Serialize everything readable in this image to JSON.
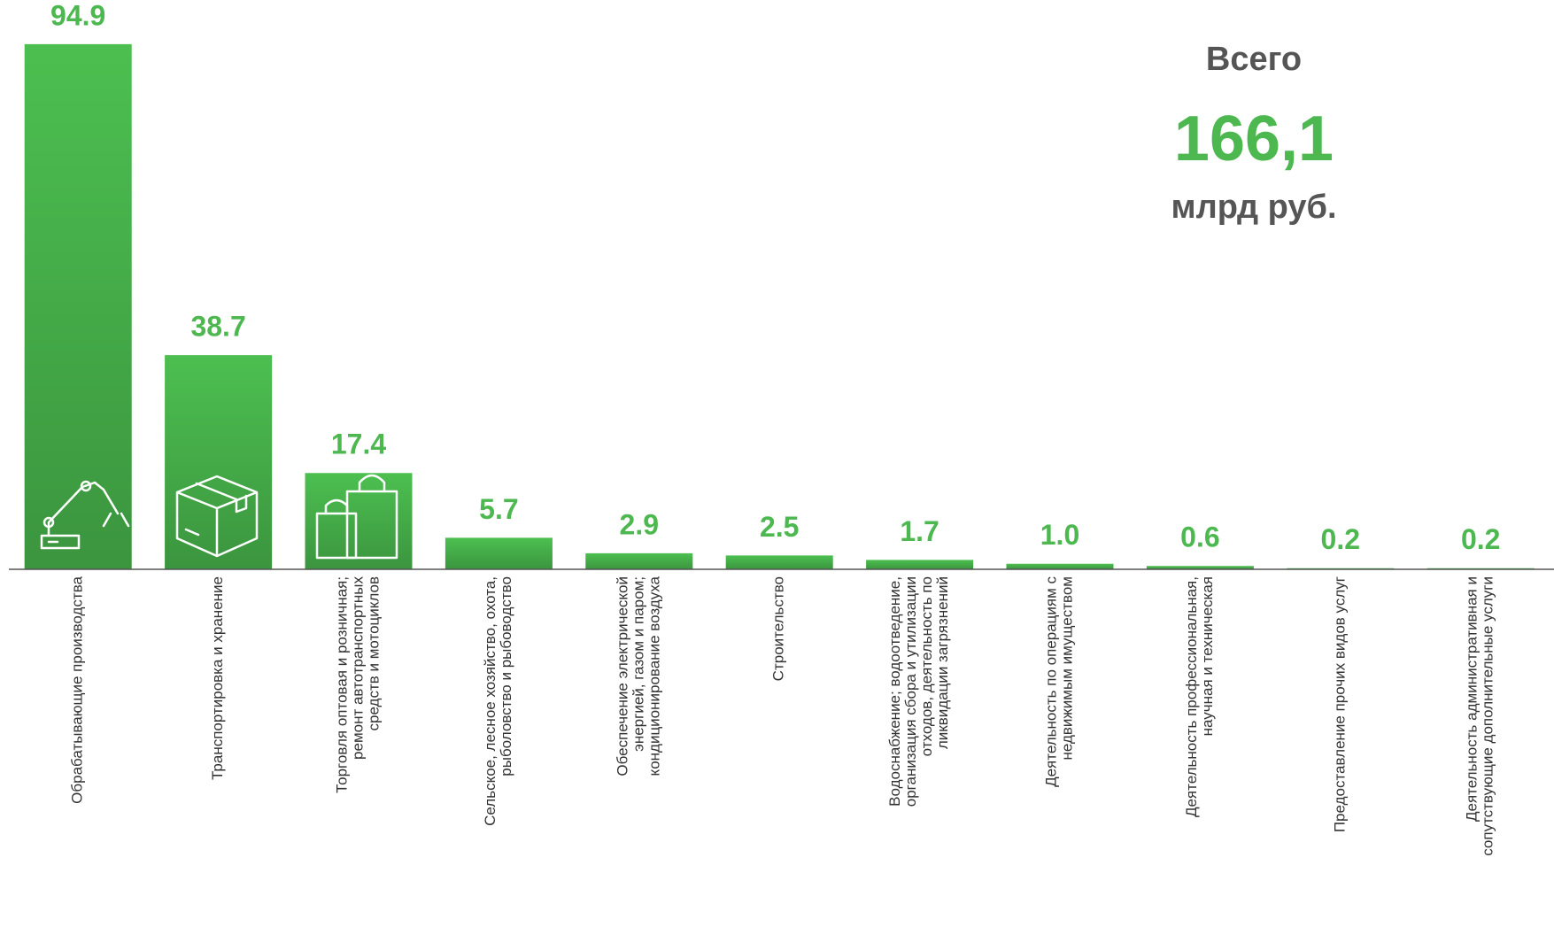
{
  "chart_data": {
    "type": "bar",
    "categories": [
      [
        "Обрабатывающие производства"
      ],
      [
        "Транспортировка и хранение"
      ],
      [
        "Торговля оптовая и розничная;",
        "ремонт автотранспортных",
        "средств и мотоциклов"
      ],
      [
        "Сельское, лесное хозяйство, охота,",
        "рыболовство и рыбоводство"
      ],
      [
        "Обеспечение электрической",
        "энергией, газом и паром;",
        "кондиционирование воздуха"
      ],
      [
        "Строительство"
      ],
      [
        "Водоснабжение; водоотведение,",
        "организация сбора и утилизации",
        "отходов, деятельность по",
        "ликвидации загрязнений"
      ],
      [
        "Деятельность по операциям с",
        "недвижимым имуществом"
      ],
      [
        "Деятельность профессиональная,",
        "научная и техническая"
      ],
      [
        "Предоставление прочих видов услуг"
      ],
      [
        "Деятельность административная и",
        "сопутствующие дополнительные услуги"
      ]
    ],
    "values": [
      94.9,
      38.7,
      17.4,
      5.7,
      2.9,
      2.5,
      1.7,
      1.0,
      0.6,
      0.2,
      0.2
    ],
    "value_labels": [
      "94.9",
      "38.7",
      "17.4",
      "5.7",
      "2.9",
      "2.5",
      "1.7",
      "1.0",
      "0.6",
      "0.2",
      "0.2"
    ],
    "color": "#4cbf50",
    "ylim": [
      0,
      100
    ],
    "annotations": [
      "Всего",
      "166,1",
      "млрд руб."
    ]
  }
}
